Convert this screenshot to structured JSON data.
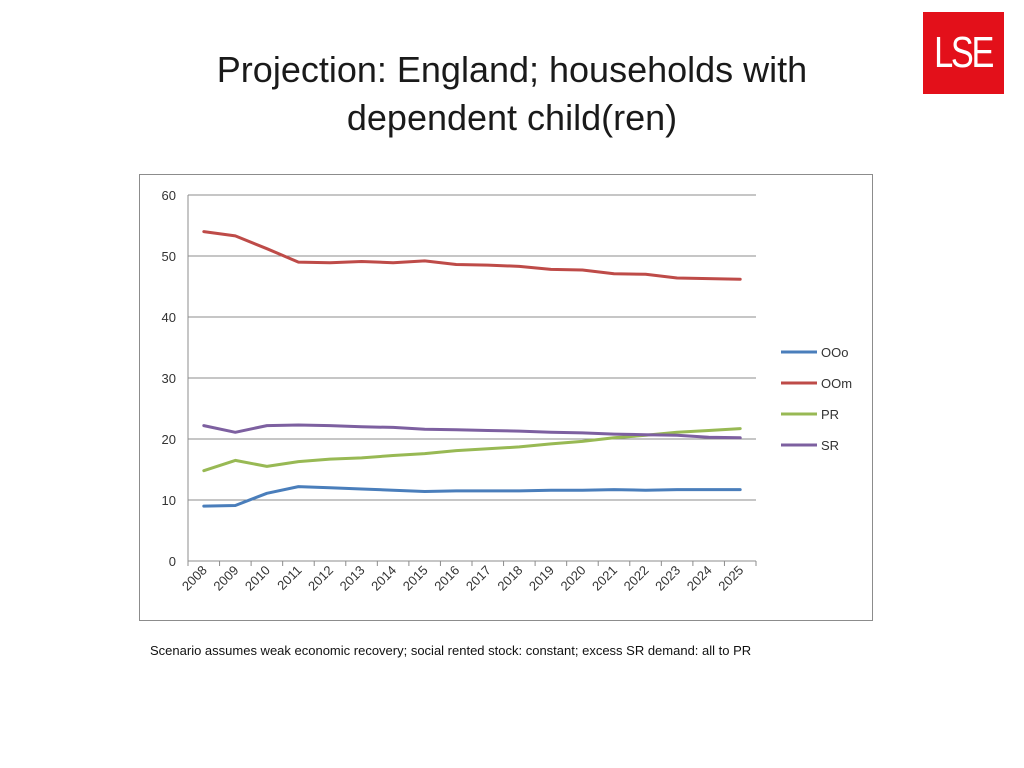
{
  "slide": {
    "title_line1": "Projection: England; households with",
    "title_line2": "dependent child(ren)",
    "logo_text": "LSE",
    "footnote": "Scenario assumes weak economic recovery; social rented stock: constant; excess SR demand: all to PR"
  },
  "chart_data": {
    "type": "line",
    "title": "",
    "xlabel": "",
    "ylabel": "",
    "ylim": [
      0,
      60
    ],
    "yticks": [
      "0",
      "10",
      "20",
      "30",
      "40",
      "50",
      "60"
    ],
    "categories": [
      "2008",
      "2009",
      "2010",
      "2011",
      "2012",
      "2013",
      "2014",
      "2015",
      "2016",
      "2017",
      "2018",
      "2019",
      "2020",
      "2021",
      "2022",
      "2023",
      "2024",
      "2025"
    ],
    "grid": true,
    "legend_position": "right",
    "series": [
      {
        "name": "OOo",
        "color": "#4a7ebb",
        "values": [
          9.0,
          9.1,
          11.1,
          12.2,
          12.0,
          11.8,
          11.6,
          11.4,
          11.5,
          11.5,
          11.5,
          11.6,
          11.6,
          11.7,
          11.6,
          11.7,
          11.7,
          11.7
        ]
      },
      {
        "name": "OOm",
        "color": "#be4b48",
        "values": [
          54.0,
          53.3,
          51.2,
          49.0,
          48.9,
          49.1,
          48.9,
          49.2,
          48.6,
          48.5,
          48.3,
          47.8,
          47.7,
          47.1,
          47.0,
          46.4,
          46.3,
          46.2
        ]
      },
      {
        "name": "PR",
        "color": "#98b954",
        "values": [
          14.8,
          16.5,
          15.5,
          16.3,
          16.7,
          16.9,
          17.3,
          17.6,
          18.1,
          18.4,
          18.7,
          19.2,
          19.6,
          20.2,
          20.6,
          21.1,
          21.4,
          21.7
        ]
      },
      {
        "name": "SR",
        "color": "#7d60a0",
        "values": [
          22.2,
          21.1,
          22.2,
          22.3,
          22.2,
          22.0,
          21.9,
          21.6,
          21.5,
          21.4,
          21.3,
          21.1,
          21.0,
          20.8,
          20.7,
          20.6,
          20.3,
          20.2
        ]
      }
    ]
  }
}
